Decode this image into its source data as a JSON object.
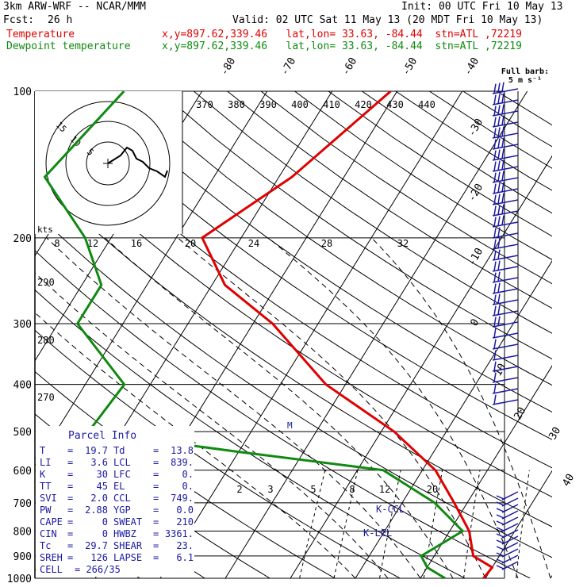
{
  "header": {
    "model": "3km ARW-WRF -- NCAR/MMM",
    "init": "Init: 00 UTC Fri 10 May 13",
    "fcst_label": "Fcst:",
    "fcst_value": "26 h",
    "valid": "Valid: 02 UTC Sat 11 May 13 (20 MDT Fri 10 May 13)",
    "temp_label": "Temperature",
    "dew_label": "Dewpoint temperature",
    "loc_info": "x,y=897.62,339.46   lat,lon= 33.63, -84.44  stn=ATL ,72219",
    "barb_title_1": "Full barb:",
    "barb_title_2": "5 m s⁻¹"
  },
  "colors": {
    "temperature": "#e00000",
    "dewpoint": "#108a10",
    "barbs": "#1a1aa0",
    "parcel": "#1a1aa0"
  },
  "chart_data": {
    "type": "skew-t",
    "pressure_axis": {
      "labels": [
        "100",
        "200",
        "300",
        "400",
        "500",
        "600",
        "700",
        "800",
        "900",
        "1000"
      ],
      "values": [
        100,
        200,
        300,
        400,
        500,
        600,
        700,
        800,
        900,
        1000
      ]
    },
    "skewed_temperature_labels": [
      "-80",
      "-70",
      "-60",
      "-50",
      "-40",
      "-30",
      "-20",
      "-10",
      "0",
      "10",
      "20",
      "30",
      "40"
    ],
    "theta_labels": [
      "370",
      "380",
      "390",
      "400",
      "410",
      "420",
      "430",
      "440"
    ],
    "lower_theta_labels": [
      "290",
      "280",
      "270"
    ],
    "mixing_ratio_labels": [
      "8",
      "12",
      "16",
      "20",
      "24",
      "28",
      "32"
    ],
    "low_mixing_ratio_labels": [
      "2",
      "3",
      "5",
      "8",
      "12",
      "20"
    ],
    "ccl_labels": [
      "K-CCL",
      "K-LCL",
      "M"
    ],
    "series": [
      {
        "name": "Temperature",
        "points": [
          [
            100,
            -41
          ],
          [
            150,
            -48
          ],
          [
            200,
            -56
          ],
          [
            250,
            -48
          ],
          [
            300,
            -37
          ],
          [
            400,
            -23
          ],
          [
            500,
            -8
          ],
          [
            600,
            2
          ],
          [
            700,
            8
          ],
          [
            800,
            13
          ],
          [
            900,
            16
          ],
          [
            950,
            20
          ],
          [
            1000,
            19.7
          ]
        ]
      },
      {
        "name": "Dewpoint temperature",
        "points": [
          [
            100,
            -82
          ],
          [
            150,
            -86
          ],
          [
            200,
            -74
          ],
          [
            250,
            -67
          ],
          [
            300,
            -67
          ],
          [
            400,
            -54
          ],
          [
            500,
            -55
          ],
          [
            550,
            -30
          ],
          [
            600,
            -6
          ],
          [
            700,
            5
          ],
          [
            800,
            12
          ],
          [
            900,
            8
          ],
          [
            950,
            10
          ],
          [
            1000,
            13.8
          ]
        ]
      }
    ],
    "hodograph": {
      "ring_labels": [
        "15",
        "10",
        "5"
      ],
      "kts_label": "kts"
    },
    "parcel_info": {
      "title": "Parcel Info",
      "rows": [
        {
          "l1": "T",
          "v1": "19.7",
          "l2": "Td",
          "v2": "13.8"
        },
        {
          "l1": "LI",
          "v1": "3.6",
          "l2": "LCL",
          "v2": "839."
        },
        {
          "l1": "K",
          "v1": "30",
          "l2": "LFC",
          "v2": "0."
        },
        {
          "l1": "TT",
          "v1": "45",
          "l2": "EL",
          "v2": "0."
        },
        {
          "l1": "SVI",
          "v1": "2.0",
          "l2": "CCL",
          "v2": "749."
        },
        {
          "l1": "PW",
          "v1": "2.88",
          "l2": "YGP",
          "v2": "0.0"
        },
        {
          "l1": "CAPE",
          "v1": "0",
          "l2": "SWEAT",
          "v2": "210"
        },
        {
          "l1": "CIN",
          "v1": "0",
          "l2": "HWBZ",
          "v2": "3361."
        },
        {
          "l1": "Tc",
          "v1": "29.7",
          "l2": "SHEAR",
          "v2": "23."
        },
        {
          "l1": "SREH",
          "v1": "126",
          "l2": "LAPSE",
          "v2": "6.1"
        }
      ],
      "cell_label": "CELL",
      "cell_value": "266/35"
    }
  }
}
